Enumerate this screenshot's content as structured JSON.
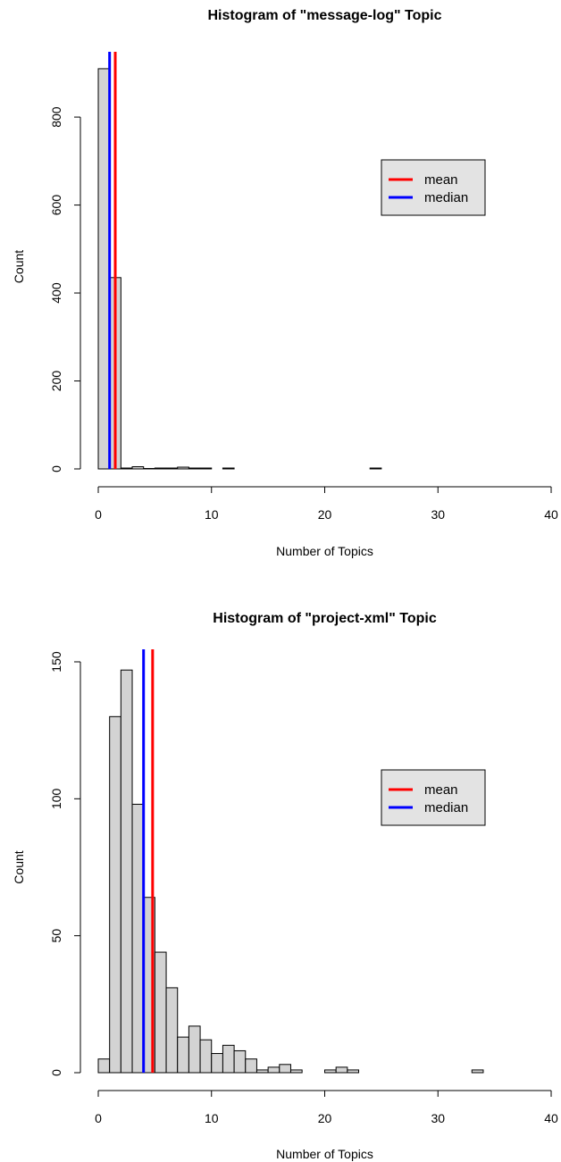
{
  "chart_data": [
    {
      "type": "bar",
      "subtype": "histogram",
      "title": "Histogram of \"message-log\" Topic",
      "xlabel": "Number of Topics",
      "ylabel": "Count",
      "xlim": [
        0,
        40
      ],
      "ylim": [
        0,
        920
      ],
      "xticks": [
        0,
        10,
        20,
        30,
        40
      ],
      "xtick_labels": [
        "0",
        "10",
        "20",
        "30",
        "40"
      ],
      "yticks": [
        0,
        200,
        400,
        600,
        800
      ],
      "ytick_labels": [
        "0",
        "200",
        "400",
        "600",
        "800"
      ],
      "bin_width": 1,
      "bins": [
        {
          "x0": 0,
          "x1": 1,
          "count": 910
        },
        {
          "x0": 1,
          "x1": 2,
          "count": 435
        },
        {
          "x0": 2,
          "x1": 3,
          "count": 2
        },
        {
          "x0": 3,
          "x1": 4,
          "count": 5
        },
        {
          "x0": 4,
          "x1": 5,
          "count": 1
        },
        {
          "x0": 5,
          "x1": 6,
          "count": 2
        },
        {
          "x0": 6,
          "x1": 7,
          "count": 2
        },
        {
          "x0": 7,
          "x1": 8,
          "count": 4
        },
        {
          "x0": 8,
          "x1": 9,
          "count": 2
        },
        {
          "x0": 9,
          "x1": 10,
          "count": 2
        },
        {
          "x0": 10,
          "x1": 11,
          "count": 0
        },
        {
          "x0": 11,
          "x1": 12,
          "count": 2
        },
        {
          "x0": 24,
          "x1": 25,
          "count": 2
        }
      ],
      "lines": [
        {
          "name": "mean",
          "x": 1.5,
          "color": "#ff0000"
        },
        {
          "name": "median",
          "x": 1.0,
          "color": "#0000ff"
        }
      ],
      "legend": {
        "placement": "right",
        "entries": [
          {
            "label": "mean",
            "color": "#ff0000"
          },
          {
            "label": "median",
            "color": "#0000ff"
          }
        ]
      },
      "colors": {
        "bar_fill": "#d3d3d3",
        "bar_stroke": "#000000",
        "legend_bg": "#e3e3e3"
      }
    },
    {
      "type": "bar",
      "subtype": "histogram",
      "title": "Histogram of \"project-xml\" Topic",
      "xlabel": "Number of Topics",
      "ylabel": "Count",
      "xlim": [
        0,
        40
      ],
      "ylim": [
        0,
        150
      ],
      "xticks": [
        0,
        10,
        20,
        30,
        40
      ],
      "xtick_labels": [
        "0",
        "10",
        "20",
        "30",
        "40"
      ],
      "yticks": [
        0,
        50,
        100,
        150
      ],
      "ytick_labels": [
        "0",
        "50",
        "100",
        "150"
      ],
      "bin_width": 1,
      "bins": [
        {
          "x0": 0,
          "x1": 1,
          "count": 5
        },
        {
          "x0": 1,
          "x1": 2,
          "count": 130
        },
        {
          "x0": 2,
          "x1": 3,
          "count": 147
        },
        {
          "x0": 3,
          "x1": 4,
          "count": 98
        },
        {
          "x0": 4,
          "x1": 5,
          "count": 64
        },
        {
          "x0": 5,
          "x1": 6,
          "count": 44
        },
        {
          "x0": 6,
          "x1": 7,
          "count": 31
        },
        {
          "x0": 7,
          "x1": 8,
          "count": 13
        },
        {
          "x0": 8,
          "x1": 9,
          "count": 17
        },
        {
          "x0": 9,
          "x1": 10,
          "count": 12
        },
        {
          "x0": 10,
          "x1": 11,
          "count": 7
        },
        {
          "x0": 11,
          "x1": 12,
          "count": 10
        },
        {
          "x0": 12,
          "x1": 13,
          "count": 8
        },
        {
          "x0": 13,
          "x1": 14,
          "count": 5
        },
        {
          "x0": 14,
          "x1": 15,
          "count": 1
        },
        {
          "x0": 15,
          "x1": 16,
          "count": 2
        },
        {
          "x0": 16,
          "x1": 17,
          "count": 3
        },
        {
          "x0": 17,
          "x1": 18,
          "count": 1
        },
        {
          "x0": 20,
          "x1": 21,
          "count": 1
        },
        {
          "x0": 21,
          "x1": 22,
          "count": 2
        },
        {
          "x0": 22,
          "x1": 23,
          "count": 1
        },
        {
          "x0": 33,
          "x1": 34,
          "count": 1
        }
      ],
      "lines": [
        {
          "name": "mean",
          "x": 4.8,
          "color": "#ff0000"
        },
        {
          "name": "median",
          "x": 4.0,
          "color": "#0000ff"
        }
      ],
      "legend": {
        "placement": "right",
        "entries": [
          {
            "label": "mean",
            "color": "#ff0000"
          },
          {
            "label": "median",
            "color": "#0000ff"
          }
        ]
      },
      "colors": {
        "bar_fill": "#d3d3d3",
        "bar_stroke": "#000000",
        "legend_bg": "#e3e3e3"
      }
    }
  ]
}
